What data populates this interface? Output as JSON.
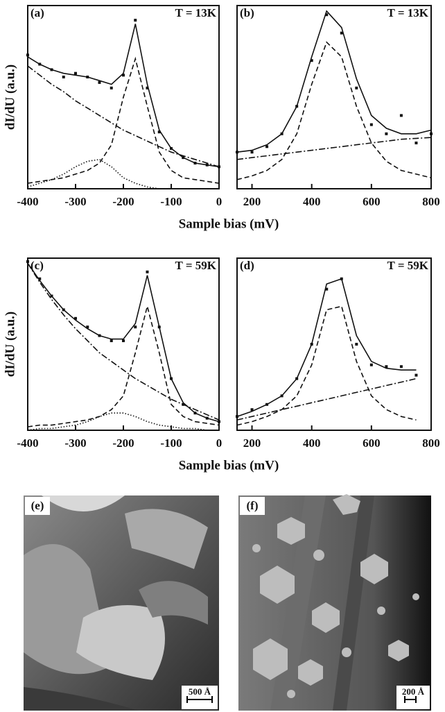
{
  "chart_data": [
    {
      "type": "line",
      "panel_label": "(a)",
      "annotation": "T = 13K",
      "ylabel": "dI/dU (a.u.)",
      "xlabel": "Sample bias (mV)",
      "x": [
        -400,
        -375,
        -350,
        -325,
        -300,
        -275,
        -250,
        -225,
        -200,
        -175,
        -150,
        -125,
        -100,
        -75,
        -50,
        -25,
        0
      ],
      "xlim": [
        -400,
        0
      ],
      "xticks": [
        -400,
        -300,
        -200,
        -100,
        0
      ],
      "ylim": [
        0,
        1
      ],
      "series": [
        {
          "style": "points",
          "color": "#111",
          "values": [
            0.73,
            0.68,
            0.65,
            0.61,
            0.63,
            0.61,
            0.58,
            0.55,
            0.62,
            0.92,
            0.55,
            0.31,
            0.22,
            0.17,
            0.14,
            0.13,
            0.12
          ]
        },
        {
          "style": "solid",
          "color": "#111",
          "values": [
            0.72,
            0.68,
            0.65,
            0.63,
            0.62,
            0.61,
            0.59,
            0.57,
            0.63,
            0.9,
            0.57,
            0.32,
            0.22,
            0.17,
            0.14,
            0.13,
            0.12
          ]
        },
        {
          "style": "dashed",
          "color": "#111",
          "values": [
            0.03,
            0.04,
            0.05,
            0.06,
            0.08,
            0.1,
            0.14,
            0.24,
            0.5,
            0.71,
            0.45,
            0.2,
            0.1,
            0.06,
            0.05,
            0.04,
            0.03
          ]
        },
        {
          "style": "dotted",
          "color": "#111",
          "values": [
            0.01,
            0.03,
            0.05,
            0.08,
            0.12,
            0.15,
            0.16,
            0.12,
            0.06,
            0.03,
            0.01,
            0.0,
            0.0,
            0.0,
            0.0,
            0.0,
            0.0
          ]
        },
        {
          "style": "dashdot",
          "color": "#111",
          "values": [
            0.67,
            0.62,
            0.57,
            0.53,
            0.48,
            0.44,
            0.4,
            0.36,
            0.32,
            0.29,
            0.26,
            0.23,
            0.2,
            0.18,
            0.16,
            0.14,
            0.12
          ]
        }
      ]
    },
    {
      "type": "line",
      "panel_label": "(b)",
      "annotation": "T = 13K",
      "x": [
        150,
        200,
        250,
        300,
        350,
        400,
        450,
        500,
        550,
        600,
        650,
        700,
        750,
        800
      ],
      "xlim": [
        150,
        800
      ],
      "xticks": [
        200,
        400,
        600,
        800
      ],
      "ylim": [
        0,
        1
      ],
      "series": [
        {
          "style": "points",
          "color": "#111",
          "values": [
            0.2,
            0.2,
            0.23,
            0.3,
            0.45,
            0.7,
            0.95,
            0.85,
            0.55,
            0.35,
            0.3,
            0.4,
            0.25,
            0.3
          ]
        },
        {
          "style": "solid",
          "color": "#111",
          "values": [
            0.2,
            0.21,
            0.24,
            0.3,
            0.45,
            0.72,
            0.97,
            0.88,
            0.6,
            0.4,
            0.33,
            0.3,
            0.3,
            0.32
          ]
        },
        {
          "style": "dashed",
          "color": "#111",
          "values": [
            0.05,
            0.07,
            0.1,
            0.16,
            0.3,
            0.57,
            0.8,
            0.72,
            0.45,
            0.25,
            0.15,
            0.1,
            0.08,
            0.06
          ]
        },
        {
          "style": "dashdot",
          "color": "#111",
          "values": [
            0.16,
            0.17,
            0.18,
            0.19,
            0.2,
            0.21,
            0.22,
            0.23,
            0.24,
            0.25,
            0.26,
            0.27,
            0.275,
            0.28
          ]
        }
      ]
    },
    {
      "type": "line",
      "panel_label": "(c)",
      "annotation": "T = 59K",
      "ylabel": "dI/dU (a.u.)",
      "xlabel": "Sample bias (mV)",
      "x": [
        -400,
        -375,
        -350,
        -325,
        -300,
        -275,
        -250,
        -225,
        -200,
        -175,
        -150,
        -125,
        -100,
        -75,
        -50,
        -25,
        0
      ],
      "xlim": [
        -400,
        0
      ],
      "xticks": [
        -400,
        -300,
        -200,
        -100,
        0
      ],
      "ylim": [
        0,
        1
      ],
      "series": [
        {
          "style": "points",
          "color": "#111",
          "values": [
            0.98,
            0.88,
            0.78,
            0.7,
            0.65,
            0.6,
            0.55,
            0.52,
            0.52,
            0.6,
            0.92,
            0.6,
            0.3,
            0.15,
            0.1,
            0.07,
            0.05
          ]
        },
        {
          "style": "solid",
          "color": "#111",
          "values": [
            0.97,
            0.87,
            0.78,
            0.7,
            0.64,
            0.59,
            0.55,
            0.53,
            0.53,
            0.62,
            0.9,
            0.6,
            0.3,
            0.16,
            0.1,
            0.07,
            0.05
          ]
        },
        {
          "style": "dashed",
          "color": "#111",
          "values": [
            0.02,
            0.03,
            0.03,
            0.04,
            0.05,
            0.06,
            0.08,
            0.12,
            0.2,
            0.45,
            0.72,
            0.45,
            0.15,
            0.08,
            0.05,
            0.04,
            0.03
          ]
        },
        {
          "style": "dotted",
          "color": "#111",
          "values": [
            0.0,
            0.01,
            0.01,
            0.02,
            0.03,
            0.05,
            0.08,
            0.1,
            0.1,
            0.08,
            0.05,
            0.03,
            0.02,
            0.01,
            0.01,
            0.0,
            0.0
          ]
        },
        {
          "style": "dashdot",
          "color": "#111",
          "values": [
            0.97,
            0.86,
            0.76,
            0.67,
            0.59,
            0.52,
            0.45,
            0.4,
            0.35,
            0.3,
            0.26,
            0.22,
            0.18,
            0.15,
            0.12,
            0.09,
            0.06
          ]
        }
      ]
    },
    {
      "type": "line",
      "panel_label": "(d)",
      "annotation": "T = 59K",
      "x": [
        150,
        200,
        250,
        300,
        350,
        400,
        450,
        500,
        550,
        600,
        650,
        700,
        750
      ],
      "xlim": [
        150,
        800
      ],
      "xticks": [
        200,
        400,
        600,
        800
      ],
      "ylim": [
        0,
        1
      ],
      "series": [
        {
          "style": "points",
          "color": "#111",
          "values": [
            0.08,
            0.12,
            0.15,
            0.2,
            0.3,
            0.5,
            0.82,
            0.88,
            0.5,
            0.38,
            0.37,
            0.37,
            0.32
          ]
        },
        {
          "style": "solid",
          "color": "#111",
          "values": [
            0.08,
            0.11,
            0.15,
            0.2,
            0.3,
            0.5,
            0.85,
            0.88,
            0.55,
            0.4,
            0.36,
            0.35,
            0.35
          ]
        },
        {
          "style": "dashed",
          "color": "#111",
          "values": [
            0.03,
            0.05,
            0.08,
            0.12,
            0.2,
            0.38,
            0.7,
            0.72,
            0.4,
            0.2,
            0.12,
            0.08,
            0.06
          ]
        },
        {
          "style": "dashdot",
          "color": "#111",
          "values": [
            0.06,
            0.08,
            0.1,
            0.12,
            0.14,
            0.16,
            0.18,
            0.2,
            0.22,
            0.24,
            0.26,
            0.28,
            0.3
          ]
        }
      ]
    }
  ],
  "images": [
    {
      "label": "(e)",
      "scale": "500 Å"
    },
    {
      "label": "(f)",
      "scale": "200 Å"
    }
  ]
}
